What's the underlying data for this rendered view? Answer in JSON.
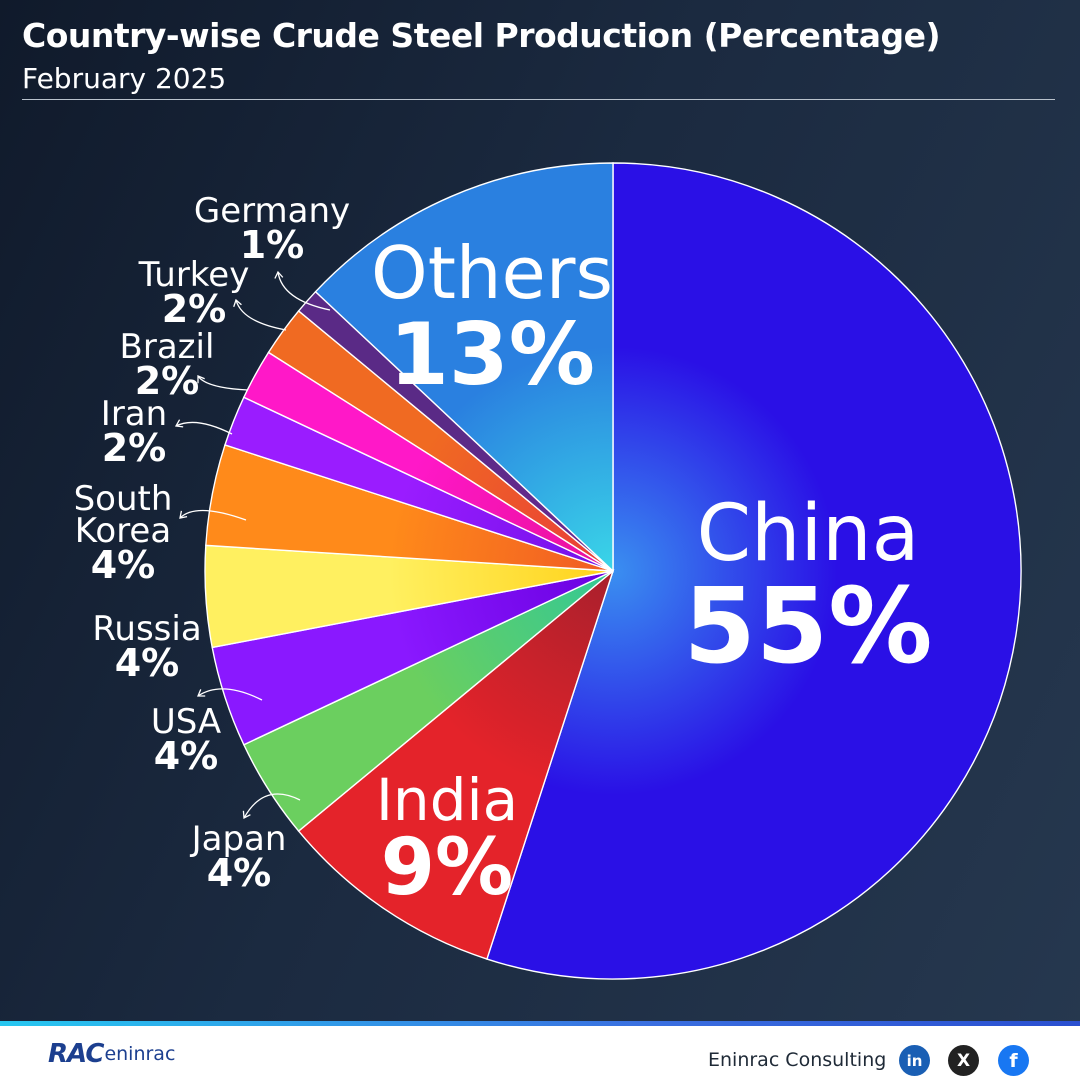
{
  "header": {
    "title": "Country-wise Crude Steel Production (Percentage)",
    "subtitle": "February 2025"
  },
  "chart_data": {
    "type": "pie",
    "title": "Country-wise Crude Steel Production (Percentage)",
    "subtitle": "February 2025",
    "unit": "%",
    "slices": [
      {
        "label": "China",
        "label_lines": [
          "China"
        ],
        "value": 55,
        "display": "55%",
        "color_start": "#3a8ff0",
        "color": "#2a10e6",
        "label_style": "inside-large"
      },
      {
        "label": "India",
        "label_lines": [
          "India"
        ],
        "value": 9,
        "display": "9%",
        "color_start": "#a8202c",
        "color": "#e4232a",
        "label_style": "inside-medium"
      },
      {
        "label": "Japan",
        "label_lines": [
          "Japan"
        ],
        "value": 4,
        "display": "4%",
        "color_start": "#32c896",
        "color": "#6bcf5f",
        "label_style": "outside"
      },
      {
        "label": "USA",
        "label_lines": [
          "USA"
        ],
        "value": 4,
        "display": "4%",
        "color_start": "#6a00e0",
        "color": "#8a18ff",
        "label_style": "outside"
      },
      {
        "label": "Russia",
        "label_lines": [
          "Russia"
        ],
        "value": 4,
        "display": "4%",
        "color_start": "#ffd21a",
        "color": "#fff060",
        "label_style": "outside"
      },
      {
        "label": "South Korea",
        "label_lines": [
          "South",
          "Korea"
        ],
        "value": 4,
        "display": "4%",
        "color_start": "#f05a24",
        "color": "#ff8a1a",
        "label_style": "outside"
      },
      {
        "label": "Iran",
        "label_lines": [
          "Iran"
        ],
        "value": 2,
        "display": "2%",
        "color_start": "#7010e8",
        "color": "#9a1cff",
        "label_style": "outside"
      },
      {
        "label": "Brazil",
        "label_lines": [
          "Brazil"
        ],
        "value": 2,
        "display": "2%",
        "color_start": "#e8109a",
        "color": "#ff18c8",
        "label_style": "outside"
      },
      {
        "label": "Turkey",
        "label_lines": [
          "Turkey"
        ],
        "value": 2,
        "display": "2%",
        "color_start": "#e83a3a",
        "color": "#f06a22",
        "label_style": "outside"
      },
      {
        "label": "Germany",
        "label_lines": [
          "Germany"
        ],
        "value": 1,
        "display": "1%",
        "color_start": "#6a2a90",
        "color": "#5a2a86",
        "label_style": "outside"
      },
      {
        "label": "Others",
        "label_lines": [
          "Others"
        ],
        "value": 13,
        "display": "13%",
        "color_start": "#3ad6e8",
        "color": "#2a80e0",
        "label_style": "inside-medium"
      }
    ],
    "start_angle_deg": 0,
    "direction": "clockwise",
    "legend": "none"
  },
  "footer": {
    "logo_mark": "RAC",
    "logo_word": "eninrac",
    "brand": "Eninrac Consulting",
    "icons": [
      "linkedin-icon",
      "x-icon",
      "facebook-icon"
    ],
    "icon_text": {
      "linkedin": "in",
      "x": "X",
      "facebook": "f"
    }
  }
}
